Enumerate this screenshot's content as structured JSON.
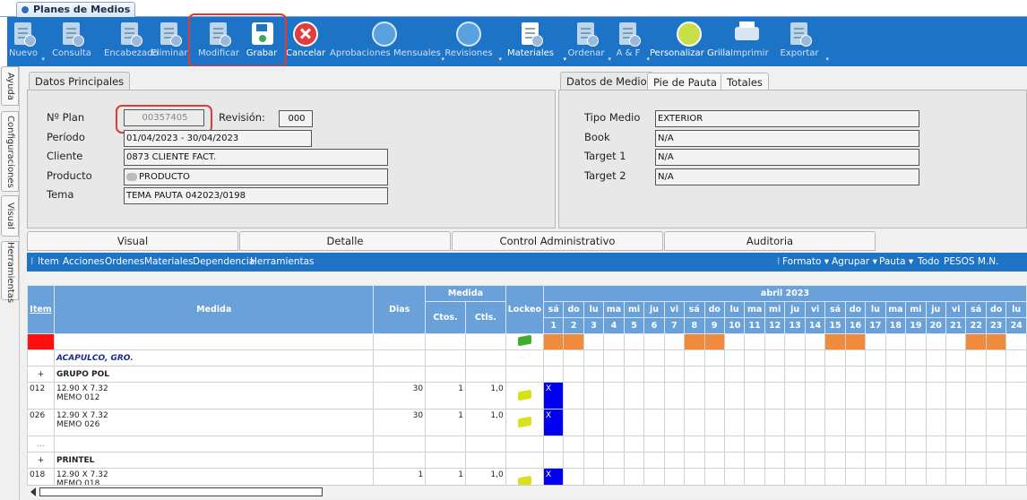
{
  "app": {
    "tab_title": "Planes de Medios"
  },
  "toolbar": {
    "buttons": [
      {
        "label": "Nuevo",
        "icon": "new-doc-icon",
        "dropdown": true,
        "enabled": false
      },
      {
        "label": "Consulta",
        "icon": "query-doc-icon",
        "dropdown": false,
        "enabled": false
      },
      {
        "label": "Encabezado",
        "icon": "edit-header-icon",
        "dropdown": false,
        "enabled": false
      },
      {
        "label": "Eliminar",
        "icon": "delete-doc-icon",
        "dropdown": false,
        "enabled": false
      },
      {
        "label": "Modificar",
        "icon": "edit-doc-icon",
        "dropdown": false,
        "enabled": false
      },
      {
        "label": "Grabar",
        "icon": "save-icon",
        "dropdown": false,
        "enabled": true
      },
      {
        "label": "Cancelar",
        "icon": "cancel-icon",
        "dropdown": false,
        "enabled": true
      },
      {
        "label": "Aprobaciones Mensuales",
        "icon": "thumbs-up-icon",
        "dropdown": true,
        "enabled": false
      },
      {
        "label": "Revisiones",
        "icon": "thumbs-up-icon",
        "dropdown": true,
        "enabled": false
      },
      {
        "label": "Materiales",
        "icon": "materials-icon",
        "dropdown": true,
        "enabled": true
      },
      {
        "label": "Ordenar",
        "icon": "order-doc-icon",
        "dropdown": true,
        "enabled": false
      },
      {
        "label": "A & F",
        "icon": "af-doc-icon",
        "dropdown": true,
        "enabled": false
      },
      {
        "label": "Personalizar Grilla",
        "icon": "grid-customize-icon",
        "dropdown": false,
        "enabled": true
      },
      {
        "label": "Imprimir",
        "icon": "printer-icon",
        "dropdown": false,
        "enabled": false
      },
      {
        "label": "Exportar",
        "icon": "export-doc-icon",
        "dropdown": true,
        "enabled": false
      }
    ]
  },
  "sidebar": {
    "tabs": [
      "Ayuda",
      "Configuraciones",
      "Visual",
      "Herramientas"
    ]
  },
  "datos_principales": {
    "tab": "Datos Principales",
    "nro_plan_label": "Nº Plan",
    "nro_plan_value": "00357405",
    "revision_label": "Revisión:",
    "revision_value": "000",
    "periodo_label": "Período",
    "periodo_value": "01/04/2023 - 30/04/2023",
    "cliente_label": "Cliente",
    "cliente_value": "0873 CLIENTE FACT.",
    "producto_label": "Producto",
    "producto_value": "PRODUCTO",
    "tema_label": "Tema",
    "tema_value": "TEMA PAUTA 042023/0198"
  },
  "datos_medio": {
    "tabs": [
      "Datos de Medio",
      "Pie de Pauta",
      "Totales"
    ],
    "tipo_medio_label": "Tipo Medio",
    "tipo_medio_value": "EXTERIOR",
    "book_label": "Book",
    "book_value": "N/A",
    "target1_label": "Target 1",
    "target1_value": "N/A",
    "target2_label": "Target 2",
    "target2_value": "N/A"
  },
  "bottom_tabs": [
    "Visual",
    "Detalle",
    "Control Administrativo",
    "Auditoria"
  ],
  "grid_menu": {
    "left": [
      "Item",
      "Acciones",
      "Ordenes",
      "Materiales",
      "Dependencia",
      "Herramientas"
    ],
    "right": [
      "Formato ▾",
      "Agrupar ▾",
      "Pauta ▾",
      "Todo",
      "PESOS M.N."
    ]
  },
  "grid": {
    "headers": {
      "item": "Item",
      "medida": "Medida",
      "dias": "Dias",
      "medida_group": "Medida",
      "ctos": "Ctos.",
      "ctls": "Ctls.",
      "lockeo": "Lockeo",
      "month": "abril 2023"
    },
    "day_names": [
      "sá",
      "do",
      "lu",
      "ma",
      "mi",
      "ju",
      "vi",
      "sá",
      "do",
      "lu",
      "ma",
      "mi",
      "ju",
      "vi",
      "sá",
      "do",
      "lu",
      "ma",
      "mi",
      "ju",
      "vi",
      "sá",
      "do",
      "lu"
    ],
    "day_numbers": [
      "1",
      "2",
      "3",
      "4",
      "5",
      "6",
      "7",
      "8",
      "9",
      "10",
      "11",
      "12",
      "13",
      "14",
      "15",
      "16",
      "17",
      "18",
      "19",
      "20",
      "21",
      "22",
      "23",
      "24"
    ],
    "location": "ACAPULCO, GRO.",
    "rows": [
      {
        "type": "group",
        "toggle": "+",
        "name": "GRUPO POL"
      },
      {
        "type": "item",
        "item": "012",
        "medida": "12.90 X 7.32",
        "memo": "MEMO 012",
        "dias": "30",
        "ctos": "1",
        "ctls": "1,0",
        "mark": "X"
      },
      {
        "type": "item",
        "item": "026",
        "medida": "12.90 X 7.32",
        "memo": "MEMO 026",
        "dias": "30",
        "ctos": "1",
        "ctls": "1,0",
        "mark": "X"
      },
      {
        "type": "ellipsis",
        "item": "..."
      },
      {
        "type": "group",
        "toggle": "+",
        "name": "PRINTEL"
      },
      {
        "type": "item",
        "item": "018",
        "medida": "12.90 X 7.32",
        "memo": "MEMO 018",
        "dias": "1",
        "ctos": "1",
        "ctls": "1,0",
        "mark": "X"
      }
    ]
  },
  "colors": {
    "toolbar": "#1d74c7",
    "weekend": "#f08a3c",
    "header": "#6aa1d8",
    "highlight": "#e03a32",
    "mark": "#0000ee"
  }
}
